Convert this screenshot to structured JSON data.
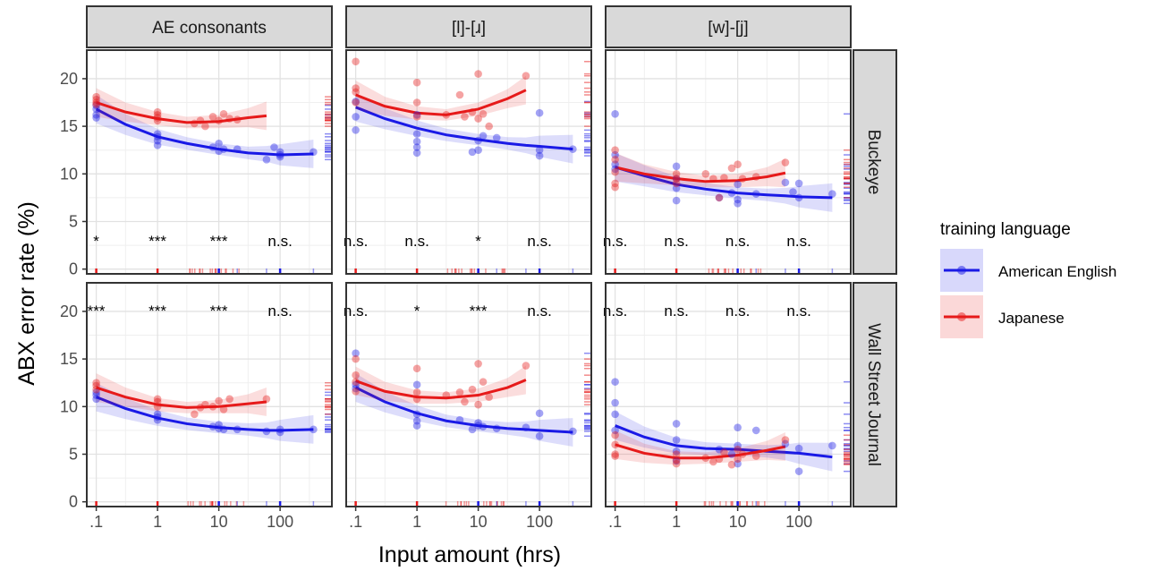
{
  "chart_data": {
    "type": "scatter",
    "ylabel": "ABX error rate (%)",
    "xlabel": "Input amount (hrs)",
    "x_scale": "log10",
    "xlim": [
      0.07,
      700
    ],
    "ylim": [
      -0.5,
      23
    ],
    "x_ticks": [
      {
        "value": 0.1,
        "label": ".1"
      },
      {
        "value": 1,
        "label": "1"
      },
      {
        "value": 10,
        "label": "10"
      },
      {
        "value": 100,
        "label": "100"
      }
    ],
    "y_ticks": [
      0,
      5,
      10,
      15,
      20
    ],
    "grid": true,
    "columns": [
      "AE consonants",
      "[l]-[ɹ]",
      "[w]-[j]"
    ],
    "rows": [
      "Buckeye",
      "Wall Street Journal"
    ],
    "legend": {
      "title": "training language",
      "placement": "right",
      "items": [
        {
          "name": "American English",
          "color": "#1a1ae6"
        },
        {
          "name": "Japanese",
          "color": "#e61a1a"
        }
      ]
    },
    "fit_x": [
      0.1,
      0.3,
      1,
      3,
      10,
      30,
      60,
      100,
      350
    ],
    "panels": [
      {
        "row": "Buckeye",
        "column": "AE consonants",
        "sig": [
          {
            "x": 0.1,
            "label": "*"
          },
          {
            "x": 1,
            "label": "***"
          },
          {
            "x": 10,
            "label": "***"
          },
          {
            "x": 100,
            "label": "n.s."
          }
        ],
        "en_fit": [
          16.8,
          15.2,
          13.9,
          13.2,
          12.6,
          12.2,
          12.1,
          12.0,
          12.1
        ],
        "ja_fit": [
          17.5,
          16.5,
          15.8,
          15.4,
          15.5,
          15.9,
          16.1,
          null,
          null
        ],
        "en_pts": [
          [
            0.1,
            16.2
          ],
          [
            0.1,
            16.8
          ],
          [
            0.1,
            17.2
          ],
          [
            0.1,
            15.9
          ],
          [
            1,
            13.5
          ],
          [
            1,
            13.9
          ],
          [
            1,
            14.2
          ],
          [
            1,
            13.0
          ],
          [
            8,
            12.8
          ],
          [
            10,
            12.4
          ],
          [
            10,
            13.2
          ],
          [
            12,
            12.6
          ],
          [
            20,
            12.6
          ],
          [
            60,
            11.5
          ],
          [
            80,
            12.8
          ],
          [
            100,
            12.0
          ],
          [
            100,
            11.8
          ],
          [
            100,
            12.3
          ],
          [
            350,
            12.3
          ]
        ],
        "ja_pts": [
          [
            0.1,
            17.3
          ],
          [
            0.1,
            17.8
          ],
          [
            0.1,
            18.1
          ],
          [
            0.1,
            17.5
          ],
          [
            1,
            15.6
          ],
          [
            1,
            16.2
          ],
          [
            1,
            16.5
          ],
          [
            1,
            15.9
          ],
          [
            4,
            15.3
          ],
          [
            5,
            15.6
          ],
          [
            6,
            15.0
          ],
          [
            8,
            16.0
          ],
          [
            10,
            15.6
          ],
          [
            12,
            16.3
          ],
          [
            15,
            15.8
          ],
          [
            20,
            15.7
          ]
        ]
      },
      {
        "row": "Buckeye",
        "column": "[l]-[ɹ]",
        "sig": [
          {
            "x": 0.1,
            "label": "n.s."
          },
          {
            "x": 1,
            "label": "n.s."
          },
          {
            "x": 10,
            "label": "*"
          },
          {
            "x": 100,
            "label": "n.s."
          }
        ],
        "en_fit": [
          17.0,
          15.8,
          14.8,
          14.1,
          13.6,
          13.2,
          13.0,
          12.9,
          12.6
        ],
        "ja_fit": [
          18.3,
          17.1,
          16.4,
          16.2,
          16.8,
          17.9,
          18.8,
          null,
          null
        ],
        "en_pts": [
          [
            0.1,
            14.6
          ],
          [
            0.1,
            17.6
          ],
          [
            0.1,
            16.0
          ],
          [
            1,
            12.8
          ],
          [
            1,
            13.4
          ],
          [
            1,
            14.2
          ],
          [
            1,
            16.2
          ],
          [
            1,
            12.2
          ],
          [
            8,
            12.3
          ],
          [
            10,
            12.5
          ],
          [
            10,
            13.5
          ],
          [
            12,
            14.0
          ],
          [
            20,
            13.8
          ],
          [
            100,
            12.5
          ],
          [
            100,
            11.9
          ],
          [
            100,
            16.4
          ],
          [
            350,
            12.6
          ]
        ],
        "ja_pts": [
          [
            0.1,
            21.8
          ],
          [
            0.1,
            19.0
          ],
          [
            0.1,
            18.6
          ],
          [
            0.1,
            17.5
          ],
          [
            1,
            19.6
          ],
          [
            1,
            17.5
          ],
          [
            1,
            16.0
          ],
          [
            3,
            16.2
          ],
          [
            5,
            18.3
          ],
          [
            6,
            16.0
          ],
          [
            8,
            16.5
          ],
          [
            10,
            20.5
          ],
          [
            10,
            15.8
          ],
          [
            12,
            16.3
          ],
          [
            15,
            15.0
          ],
          [
            60,
            20.3
          ]
        ]
      },
      {
        "row": "Buckeye",
        "column": "[w]-[j]",
        "sig": [
          {
            "x": 0.1,
            "label": "n.s."
          },
          {
            "x": 1,
            "label": "n.s."
          },
          {
            "x": 10,
            "label": "n.s."
          },
          {
            "x": 100,
            "label": "n.s."
          }
        ],
        "en_fit": [
          10.7,
          9.8,
          8.9,
          8.4,
          8.0,
          7.8,
          7.7,
          7.6,
          7.5
        ],
        "ja_fit": [
          10.7,
          10.0,
          9.5,
          9.2,
          9.3,
          9.7,
          10.1,
          null,
          null
        ],
        "en_pts": [
          [
            0.1,
            16.3
          ],
          [
            0.1,
            11.0
          ],
          [
            0.1,
            12.0
          ],
          [
            0.1,
            10.5
          ],
          [
            1,
            7.2
          ],
          [
            1,
            8.5
          ],
          [
            1,
            9.5
          ],
          [
            1,
            10.8
          ],
          [
            5,
            7.5
          ],
          [
            8,
            8.0
          ],
          [
            10,
            7.3
          ],
          [
            10,
            6.9
          ],
          [
            10,
            8.9
          ],
          [
            20,
            7.9
          ],
          [
            60,
            9.1
          ],
          [
            80,
            8.1
          ],
          [
            100,
            7.5
          ],
          [
            100,
            9.0
          ],
          [
            350,
            7.9
          ]
        ],
        "ja_pts": [
          [
            0.1,
            12.5
          ],
          [
            0.1,
            11.5
          ],
          [
            0.1,
            10.2
          ],
          [
            0.1,
            9.0
          ],
          [
            0.1,
            8.6
          ],
          [
            1,
            10.0
          ],
          [
            1,
            9.5
          ],
          [
            1,
            9.0
          ],
          [
            3,
            10.0
          ],
          [
            4,
            9.5
          ],
          [
            5,
            7.5
          ],
          [
            6,
            9.6
          ],
          [
            8,
            10.6
          ],
          [
            10,
            11.0
          ],
          [
            12,
            9.5
          ],
          [
            20,
            9.7
          ],
          [
            60,
            11.2
          ]
        ]
      },
      {
        "row": "Wall Street Journal",
        "column": "AE consonants",
        "sig": [
          {
            "x": 0.1,
            "label": "***"
          },
          {
            "x": 1,
            "label": "***"
          },
          {
            "x": 10,
            "label": "***"
          },
          {
            "x": 100,
            "label": "n.s."
          }
        ],
        "en_fit": [
          11.0,
          9.8,
          8.8,
          8.2,
          7.8,
          7.6,
          7.5,
          7.5,
          7.6
        ],
        "ja_fit": [
          12.0,
          11.0,
          10.2,
          9.9,
          10.0,
          10.3,
          10.5,
          null,
          null
        ],
        "en_pts": [
          [
            0.1,
            10.8
          ],
          [
            0.1,
            11.2
          ],
          [
            0.1,
            11.5
          ],
          [
            1,
            8.6
          ],
          [
            1,
            8.9
          ],
          [
            1,
            9.2
          ],
          [
            8,
            7.9
          ],
          [
            10,
            7.7
          ],
          [
            10,
            8.1
          ],
          [
            12,
            7.6
          ],
          [
            20,
            7.6
          ],
          [
            60,
            7.4
          ],
          [
            100,
            7.3
          ],
          [
            100,
            7.6
          ],
          [
            350,
            7.6
          ]
        ],
        "ja_pts": [
          [
            0.1,
            11.8
          ],
          [
            0.1,
            12.2
          ],
          [
            0.1,
            12.5
          ],
          [
            1,
            10.0
          ],
          [
            1,
            10.5
          ],
          [
            1,
            10.8
          ],
          [
            4,
            9.2
          ],
          [
            5,
            9.9
          ],
          [
            6,
            10.2
          ],
          [
            8,
            10.0
          ],
          [
            10,
            10.6
          ],
          [
            12,
            9.7
          ],
          [
            15,
            10.8
          ],
          [
            60,
            10.8
          ]
        ]
      },
      {
        "row": "Wall Street Journal",
        "column": "[l]-[ɹ]",
        "sig": [
          {
            "x": 0.1,
            "label": "n.s."
          },
          {
            "x": 1,
            "label": "*"
          },
          {
            "x": 10,
            "label": "***"
          },
          {
            "x": 100,
            "label": "n.s."
          }
        ],
        "en_fit": [
          12.0,
          10.5,
          9.3,
          8.5,
          8.0,
          7.7,
          7.6,
          7.5,
          7.3
        ],
        "ja_fit": [
          12.7,
          11.6,
          11.0,
          10.9,
          11.2,
          12.0,
          12.8,
          null,
          null
        ],
        "en_pts": [
          [
            0.1,
            15.6
          ],
          [
            0.1,
            11.9
          ],
          [
            0.1,
            12.3
          ],
          [
            1,
            8.0
          ],
          [
            1,
            8.5
          ],
          [
            1,
            9.2
          ],
          [
            1,
            12.3
          ],
          [
            5,
            8.6
          ],
          [
            8,
            7.6
          ],
          [
            10,
            8.0
          ],
          [
            10,
            8.3
          ],
          [
            12,
            7.9
          ],
          [
            20,
            7.7
          ],
          [
            60,
            7.8
          ],
          [
            100,
            9.3
          ],
          [
            100,
            6.9
          ],
          [
            350,
            7.4
          ]
        ],
        "ja_pts": [
          [
            0.1,
            15.0
          ],
          [
            0.1,
            13.3
          ],
          [
            0.1,
            12.6
          ],
          [
            0.1,
            11.6
          ],
          [
            1,
            14.0
          ],
          [
            1,
            11.5
          ],
          [
            1,
            10.8
          ],
          [
            3,
            11.2
          ],
          [
            5,
            11.5
          ],
          [
            6,
            10.5
          ],
          [
            8,
            11.8
          ],
          [
            10,
            14.5
          ],
          [
            10,
            10.2
          ],
          [
            12,
            12.6
          ],
          [
            15,
            11.0
          ],
          [
            60,
            14.3
          ]
        ]
      },
      {
        "row": "Wall Street Journal",
        "column": "[w]-[j]",
        "sig": [
          {
            "x": 0.1,
            "label": "n.s."
          },
          {
            "x": 1,
            "label": "n.s."
          },
          {
            "x": 10,
            "label": "n.s."
          },
          {
            "x": 100,
            "label": "n.s."
          }
        ],
        "en_fit": [
          8.0,
          6.8,
          5.9,
          5.6,
          5.5,
          5.3,
          5.2,
          5.1,
          4.7
        ],
        "ja_fit": [
          6.0,
          5.1,
          4.6,
          4.6,
          4.9,
          5.4,
          5.8,
          null,
          null
        ],
        "en_pts": [
          [
            0.1,
            12.6
          ],
          [
            0.1,
            10.4
          ],
          [
            0.1,
            9.2
          ],
          [
            0.1,
            7.5
          ],
          [
            1,
            4.3
          ],
          [
            1,
            5.3
          ],
          [
            1,
            6.5
          ],
          [
            1,
            8.2
          ],
          [
            5,
            5.5
          ],
          [
            8,
            5.0
          ],
          [
            10,
            4.0
          ],
          [
            10,
            7.8
          ],
          [
            10,
            5.9
          ],
          [
            20,
            7.5
          ],
          [
            60,
            6.1
          ],
          [
            100,
            3.2
          ],
          [
            100,
            5.6
          ],
          [
            350,
            5.9
          ]
        ],
        "ja_pts": [
          [
            0.1,
            7.0
          ],
          [
            0.1,
            6.0
          ],
          [
            0.1,
            5.0
          ],
          [
            0.1,
            4.8
          ],
          [
            1,
            5.0
          ],
          [
            1,
            4.4
          ],
          [
            1,
            4.0
          ],
          [
            3,
            4.6
          ],
          [
            4,
            4.2
          ],
          [
            5,
            4.5
          ],
          [
            6,
            5.2
          ],
          [
            8,
            3.9
          ],
          [
            10,
            4.5
          ],
          [
            10,
            5.5
          ],
          [
            12,
            5.0
          ],
          [
            20,
            4.8
          ],
          [
            60,
            6.5
          ]
        ]
      }
    ]
  }
}
